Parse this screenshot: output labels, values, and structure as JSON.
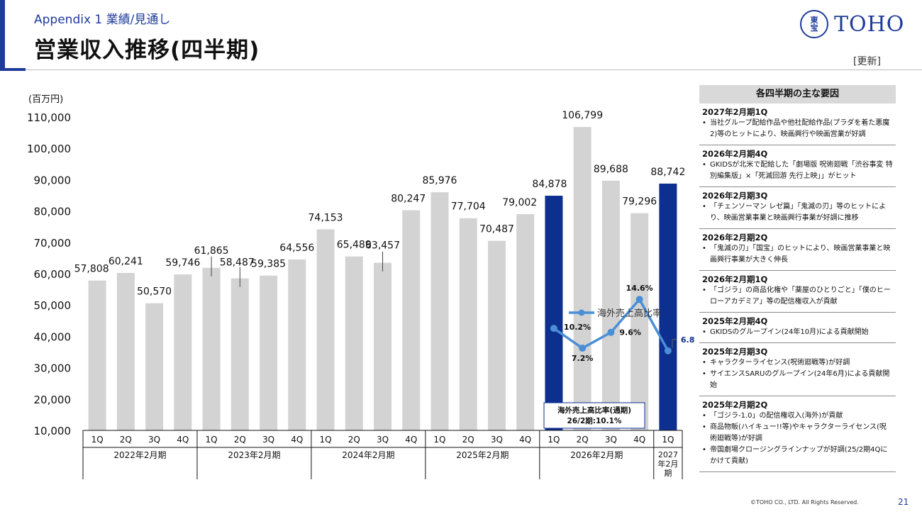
{
  "header": {
    "appendix": "Appendix 1  業績/見通し",
    "title": "営業収入推移(四半期)",
    "update_tag": "[更新]"
  },
  "logo": {
    "seal_text": "東宝",
    "text": "TOHO"
  },
  "colors": {
    "accent": "#1f3b9a",
    "bar_default": "#d3d3d3",
    "bar_highlight": "#0d2f8f",
    "ratio_line": "#4a8fd6"
  },
  "chart_data": {
    "type": "bar",
    "unit_label": "(百万円)",
    "ylim": [
      10000,
      110000
    ],
    "yticks": [
      "10,000",
      "20,000",
      "30,000",
      "40,000",
      "50,000",
      "60,000",
      "70,000",
      "80,000",
      "90,000",
      "100,000",
      "110,000"
    ],
    "categories": [
      "1Q",
      "2Q",
      "3Q",
      "4Q",
      "1Q",
      "2Q",
      "3Q",
      "4Q",
      "1Q",
      "2Q",
      "3Q",
      "4Q",
      "1Q",
      "2Q",
      "3Q",
      "4Q",
      "1Q",
      "2Q",
      "3Q",
      "4Q",
      "1Q"
    ],
    "groups": [
      {
        "label": "2022年2月期",
        "count": 4
      },
      {
        "label": "2023年2月期",
        "count": 4
      },
      {
        "label": "2024年2月期",
        "count": 4
      },
      {
        "label": "2025年2月期",
        "count": 4
      },
      {
        "label": "2026年2月期",
        "count": 4
      },
      {
        "label": "2027年2月期",
        "count": 1
      }
    ],
    "values": [
      57808,
      60241,
      50570,
      59746,
      61865,
      58487,
      59385,
      64556,
      74153,
      65489,
      63457,
      80247,
      85976,
      77704,
      70487,
      79002,
      84878,
      106799,
      89688,
      79296,
      88742
    ],
    "value_labels": [
      "57,808",
      "60,241",
      "50,570",
      "59,746",
      "61,865",
      "58,487",
      "59,385",
      "64,556",
      "74,153",
      "65,489",
      "63,457",
      "80,247",
      "85,976",
      "77,704",
      "70,487",
      "79,002",
      "84,878",
      "106,799",
      "89,688",
      "79,296",
      "88,742"
    ],
    "highlighted": [
      16,
      20
    ],
    "overseas_ratio": {
      "name": "海外売上高比率",
      "indices": [
        16,
        17,
        18,
        19,
        20
      ],
      "values": [
        10.2,
        7.2,
        9.6,
        14.6,
        6.8
      ],
      "labels": [
        "10.2%",
        "7.2%",
        "9.6%",
        "14.6%",
        "6.8%"
      ]
    },
    "annual_box": {
      "line1": "海外売上高比率(通期)",
      "line2": "26/2期:10.1%"
    }
  },
  "factors": {
    "heading": "各四半期の主な要因",
    "items": [
      {
        "title": "2027年2月期1Q",
        "bullets": [
          "当社グループ配給作品や他社配給作品(プラダを着た悪魔2)等のヒットにより、映画興行や映画営業が好調"
        ]
      },
      {
        "title": "2026年2月期4Q",
        "bullets": [
          "GKIDSが北米で配給した「劇場版 呪術廻戦「渋谷事変 特別編集版」×「死滅回游 先行上映」」がヒット"
        ]
      },
      {
        "title": "2026年2月期3Q",
        "bullets": [
          "「チェンソーマン レゼ篇」「鬼滅の刃」等のヒットにより、映画営業事業と映画興行事業が好調に推移"
        ]
      },
      {
        "title": "2026年2月期2Q",
        "bullets": [
          "「鬼滅の刃」「国宝」のヒットにより、映画営業事業と映画興行事業が大きく伸長"
        ]
      },
      {
        "title": "2026年2月期1Q",
        "bullets": [
          "「ゴジラ」の商品化権や「薬屋のひとりごと」「僕のヒーローアカデミア」等の配信権収入が貢献"
        ]
      },
      {
        "title": "2025年2月期4Q",
        "bullets": [
          "GKIDSのグループイン(24年10月)による貢献開始"
        ]
      },
      {
        "title": "2025年2月期3Q",
        "bullets": [
          "キャラクターライセンス(呪術廻戦等)が好調",
          "サイエンスSARUのグループイン(24年6月)による貢献開始"
        ]
      },
      {
        "title": "2025年2月期2Q",
        "bullets": [
          "「ゴジラ-1.0」の配信権収入(海外)が貢献",
          "商品物販(ハイキュー!!等)やキャラクターライセンス(呪術廻戦等)が好調",
          "帝国劇場クロージングラインナップが好調(25/2期4Qにかけて貢献)"
        ]
      }
    ]
  },
  "footer": {
    "copyright": "©TOHO CO., LTD. All Rights Reserved.",
    "page_number": "21"
  }
}
